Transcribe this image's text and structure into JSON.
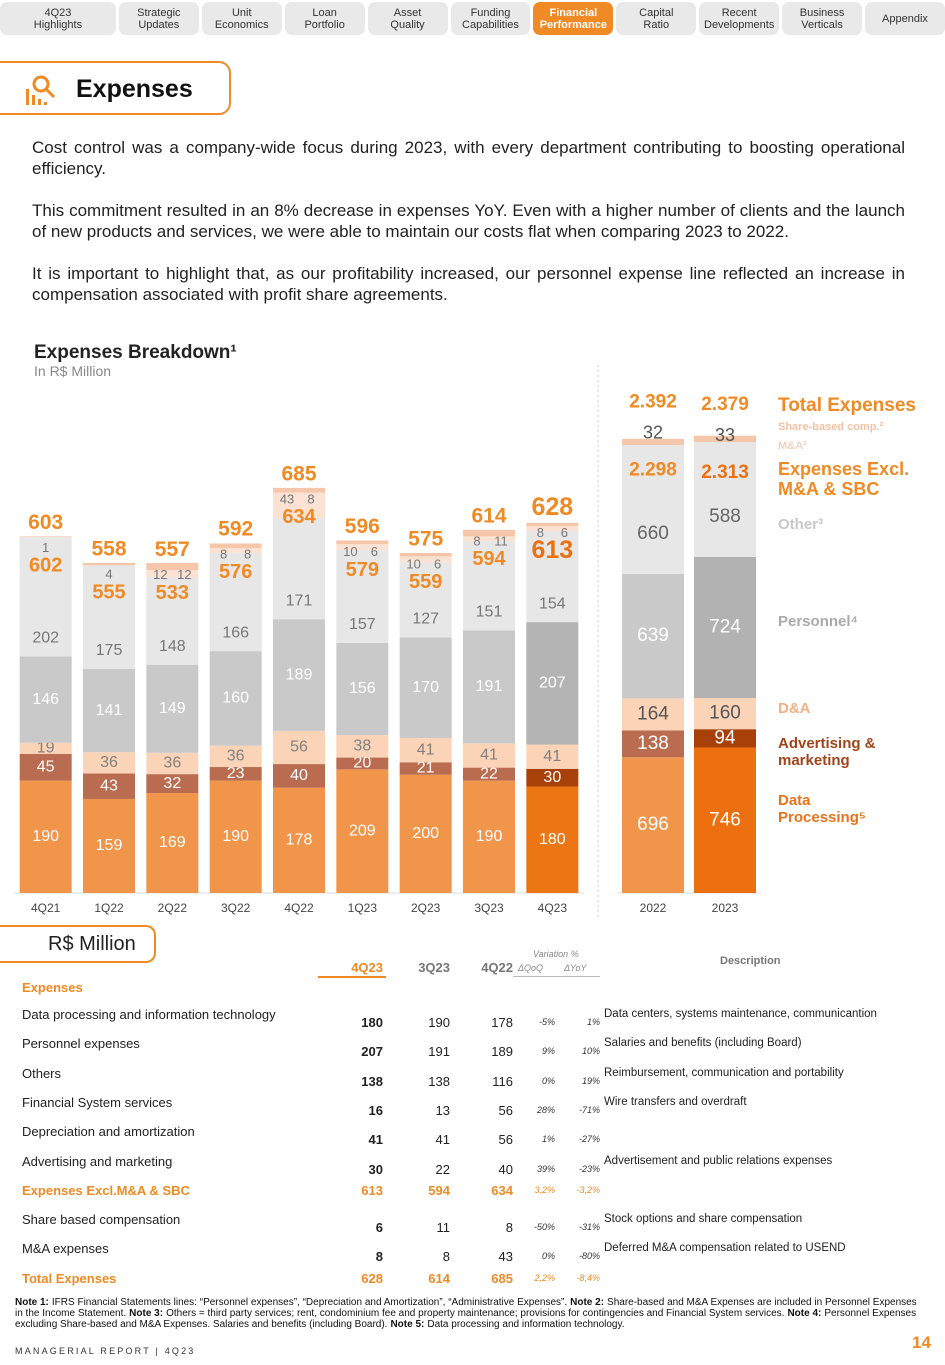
{
  "nav": {
    "tabs": [
      "4Q23\nHighlights",
      "Strategic\nUpdates",
      "Unit\nEconomics",
      "Loan\nPortfolio",
      "Asset\nQuality",
      "Funding\nCapabilities",
      "Financial\nPerformance",
      "Capital\nRatio",
      "Recent\nDevelopments",
      "Business\nVerticals",
      "Appendix"
    ],
    "active": 6
  },
  "header": {
    "title": "Expenses"
  },
  "paragraphs": [
    "Cost control was a company-wide focus during 2023, with every department contributing to boosting operational efficiency.",
    "This commitment resulted in an 8% decrease in expenses YoY. Even with a higher number of clients and the launch of new products and services, we were able to maintain our costs flat when comparing 2023 to 2022.",
    "It is important to highlight that, as our profitability increased, our personnel expense line reflected an increase in compensation associated with profit share agreements."
  ],
  "chart_data": [
    {
      "type": "stacked_bar",
      "title": "Expenses Breakdown¹",
      "subtitle": "In R$ Million",
      "categories": [
        "4Q21",
        "1Q22",
        "2Q22",
        "3Q22",
        "4Q22",
        "1Q23",
        "2Q23",
        "3Q23",
        "4Q23"
      ],
      "ylim": [
        0,
        700
      ],
      "highlight_index": 8,
      "series": [
        {
          "color": "#f0954a",
          "highlight_color": "#ec7514",
          "label_color": "#ffffff",
          "values": [
            190,
            159,
            169,
            190,
            178,
            209,
            200,
            190,
            180
          ]
        },
        {
          "color": "#b96c50",
          "highlight_color": "#a8400a",
          "label_color": "#ffffff",
          "values": [
            45,
            43,
            32,
            23,
            40,
            20,
            21,
            22,
            30
          ]
        },
        {
          "color": "#fbd4b7",
          "highlight_color": "#fbd4b7",
          "label_color": "#808080",
          "values": [
            19,
            36,
            36,
            36,
            56,
            38,
            41,
            41,
            41
          ]
        },
        {
          "color": "#c9c9c9",
          "highlight_color": "#b4b4b4",
          "label_color": "#ffffff",
          "values": [
            146,
            141,
            149,
            160,
            189,
            156,
            170,
            191,
            207
          ]
        },
        {
          "color": "#e7e7e7",
          "highlight_color": "#e7e7e7",
          "label_color": "#777777",
          "values": [
            202,
            175,
            148,
            166,
            171,
            157,
            127,
            151,
            154
          ]
        },
        {
          "color": "#fbe2d2",
          "highlight_color": "#fbe2d2",
          "label_color": "#777777",
          "values": [
            null,
            null,
            12,
            8,
            43,
            10,
            10,
            8,
            8
          ]
        },
        {
          "color": "#f6c6aa",
          "highlight_color": "#f6c6aa",
          "label_color": "#777777",
          "values": [
            1,
            4,
            12,
            8,
            8,
            6,
            6,
            11,
            6
          ]
        }
      ],
      "totals": [
        603,
        558,
        557,
        592,
        685,
        596,
        575,
        614,
        628
      ],
      "subtotals": [
        602,
        555,
        533,
        576,
        634,
        579,
        559,
        594,
        613
      ]
    },
    {
      "type": "stacked_bar",
      "categories": [
        "2022",
        "2023"
      ],
      "ylim": [
        0,
        2400
      ],
      "highlight_index": 1,
      "total_name": "Total Expenses",
      "subtotal_name": "Expenses Excl. M&A & SBC",
      "series": [
        {
          "name": "Data Processing⁵",
          "color": "#f0954a",
          "highlight_color": "#ec7010",
          "label_color": "#ffffff",
          "values": [
            696,
            746
          ]
        },
        {
          "name": "Advertising & marketing",
          "color": "#b96c50",
          "highlight_color": "#a8400a",
          "label_color": "#ffffff",
          "values": [
            138,
            94
          ]
        },
        {
          "name": "D&A",
          "color": "#fbd4b7",
          "highlight_color": "#fbd4b7",
          "label_color": "#555555",
          "values": [
            164,
            160
          ]
        },
        {
          "name": "Personnel⁴",
          "color": "#c9c9c9",
          "highlight_color": "#b2b2b2",
          "label_color": "#ffffff",
          "values": [
            639,
            724
          ]
        },
        {
          "name": "Other³",
          "color": "#e7e7e7",
          "highlight_color": "#e7e7e7",
          "label_color": "#666666",
          "values": [
            660,
            588
          ]
        },
        {
          "name": "M&A²",
          "color": "#fbe2d2",
          "highlight_color": "#fbe2d2",
          "label_color": "#555555",
          "values": [
            null,
            null
          ]
        },
        {
          "name": "Share-based comp.²",
          "color": "#f6c6aa",
          "highlight_color": "#f6c6aa",
          "label_color": "#555555",
          "values": [
            32,
            33
          ]
        }
      ],
      "totals": [
        2392,
        2379
      ],
      "total_value_labels": [
        "2.392",
        "2.379"
      ],
      "subtotals": [
        2298,
        2313
      ],
      "subtotal_value_labels": [
        "2.298",
        "2.313"
      ]
    }
  ],
  "table": {
    "unit": "R$ Million",
    "section": "Expenses",
    "columns": [
      "4Q23",
      "3Q23",
      "4Q22"
    ],
    "variation_title": "Variation %",
    "variation_columns": [
      "ΔQoQ",
      "ΔYoY"
    ],
    "description_title": "Description",
    "highlight_rows": [
      6,
      9
    ],
    "rows": [
      [
        "Data processing and information technology",
        "180",
        "190",
        "178",
        "-5%",
        "1%",
        "Data centers, systems maintenance, communicantion"
      ],
      [
        "Personnel expenses",
        "207",
        "191",
        "189",
        "9%",
        "10%",
        "Salaries and benefits (including Board)"
      ],
      [
        "Others",
        "138",
        "138",
        "116",
        "0%",
        "19%",
        "Reimbursement, communication and portability"
      ],
      [
        "Financial System services",
        "16",
        "13",
        "56",
        "28%",
        "-71%",
        "Wire transfers  and overdraft"
      ],
      [
        "Depreciation and amortization",
        "41",
        "41",
        "56",
        "1%",
        "-27%"
      ],
      [
        "Advertising and marketing",
        "30",
        "22",
        "40",
        "39%",
        "-23%",
        "Advertisement and public relations expenses"
      ],
      [
        "Expenses Excl.M&A & SBC",
        "613",
        "594",
        "634",
        "3,2%",
        "-3,2%"
      ],
      [
        "Share based compensation",
        "6",
        "11",
        "8",
        "-50%",
        "-31%",
        "Stock options and share compensation"
      ],
      [
        "M&A expenses",
        "8",
        "8",
        "43",
        "0%",
        "-80%",
        "Deferred M&A compensation related to USEND"
      ],
      [
        "Total Expenses",
        "628",
        "614",
        "685",
        "2,2%",
        "-8,4%"
      ]
    ]
  },
  "notes": [
    {
      "label": "Note 1:",
      "text": "IFRS Financial Statements lines: “Personnel expenses”, “Depreciation and Amortization”, “Administrative Expenses”."
    },
    {
      "label": "Note 2:",
      "text": "Share-based and M&A Expenses are included in Personnel Expenses in the Income Statement."
    },
    {
      "label": "Note 3:",
      "text": "Others = third party services; rent, condominium fee and property maintenance; provisions for contingencies and Financial System services."
    },
    {
      "label": "Note 4:",
      "text": "Personnel Expenses excluding Share-based and M&A Expenses. Salaries and benefits (including Board)."
    },
    {
      "label": "Note 5:",
      "text": "Data processing and information technology."
    }
  ],
  "footer": {
    "text": "MANAGERIAL REPORT | 4Q23",
    "page": "14"
  }
}
